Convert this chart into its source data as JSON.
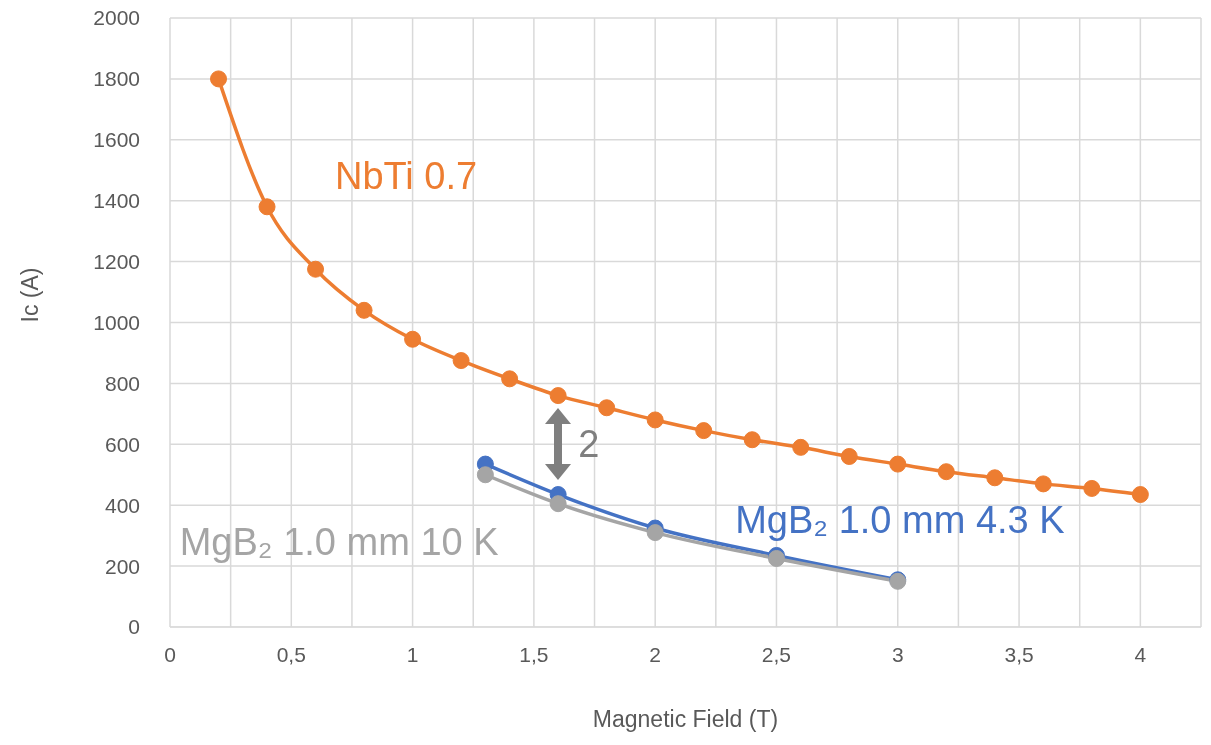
{
  "chart_data": {
    "type": "line",
    "xlabel": "Magnetic Field (T)",
    "ylabel": "Ic  (A)",
    "xlim": [
      0,
      4.25
    ],
    "xticks": [
      0,
      {
        "value": 0.25,
        "label": null
      },
      {
        "value": 0.5,
        "label": "0,5"
      },
      {
        "value": 0.75,
        "label": null
      },
      1,
      {
        "value": 1.25,
        "label": null
      },
      {
        "value": 1.5,
        "label": "1,5"
      },
      {
        "value": 1.75,
        "label": null
      },
      2,
      {
        "value": 2.25,
        "label": null
      },
      {
        "value": 2.5,
        "label": "2,5"
      },
      {
        "value": 2.75,
        "label": null
      },
      3,
      {
        "value": 3.25,
        "label": null
      },
      {
        "value": 3.5,
        "label": "3,5"
      },
      {
        "value": 3.75,
        "label": null
      },
      4,
      {
        "value": 4.25,
        "label": null
      }
    ],
    "ylim": [
      0,
      2000
    ],
    "yticks": [
      0,
      200,
      400,
      600,
      800,
      1000,
      1200,
      1400,
      1600,
      1800,
      2000
    ],
    "grid": true,
    "marker": "circle",
    "line_style": "solid",
    "series": [
      {
        "name": "NbTi 0.7",
        "color": "#ed7d31",
        "x": [
          0.2,
          0.4,
          0.6,
          0.8,
          1.0,
          1.2,
          1.4,
          1.6,
          1.8,
          2.0,
          2.2,
          2.4,
          2.6,
          2.8,
          3.0,
          3.2,
          3.4,
          3.6,
          3.8,
          4.0
        ],
        "values": [
          1800,
          1380,
          1175,
          1040,
          945,
          875,
          815,
          760,
          720,
          680,
          645,
          615,
          590,
          560,
          535,
          510,
          490,
          470,
          455,
          435
        ]
      },
      {
        "name": "MgB₂ 1.0 mm 4.3 K",
        "color": "#4472c4",
        "x": [
          1.3,
          1.6,
          2.0,
          2.5,
          3.0
        ],
        "values": [
          535,
          435,
          325,
          235,
          155
        ]
      },
      {
        "name": "MgB₂ 1.0 mm 10 K",
        "color": "#a5a5a5",
        "x": [
          1.3,
          1.6,
          2.0,
          2.5,
          3.0
        ],
        "values": [
          500,
          405,
          310,
          225,
          150
        ]
      }
    ],
    "annotations": [
      "2"
    ]
  }
}
